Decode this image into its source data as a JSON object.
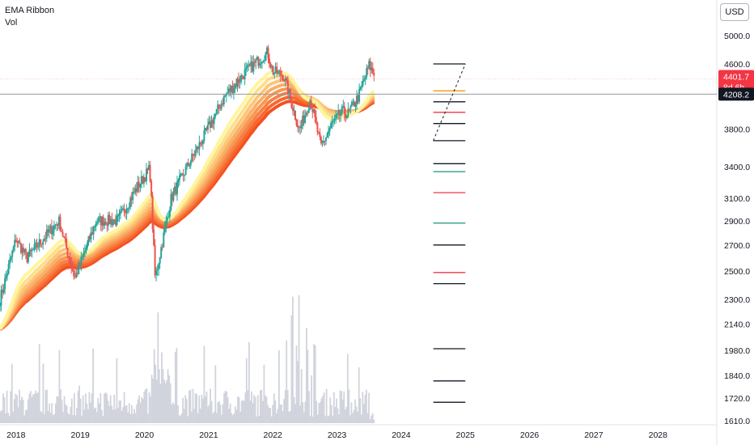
{
  "legend": {
    "line1": "EMA Ribbon",
    "line2": "Vol"
  },
  "currency_button": "USD",
  "price_tag": {
    "value": "4401.7",
    "countdown": "8d 6h",
    "color": "#f23645"
  },
  "crosshair_tag": {
    "value": "4208.2",
    "color": "#131722"
  },
  "colors": {
    "up": "#26a69a",
    "down": "#ef5350",
    "volume": "#d1d4dc",
    "ribbon_light": "#fff59d",
    "ribbon_dark": "#f4511e",
    "level_black": "#131722",
    "level_orange": "#ff9800",
    "level_red": "#f23645",
    "level_green": "#2e9e86"
  },
  "chart_data": {
    "type": "candlestick",
    "x_start": "2017-10",
    "x_end": "2028-12",
    "y_scale": "log",
    "y_ticks": [
      "5000.0",
      "4600.0",
      "4200.0",
      "3800.0",
      "3400.0",
      "3100.0",
      "2900.0",
      "2700.0",
      "2500.0",
      "2300.0",
      "2140.0",
      "1980.0",
      "1840.0",
      "1720.0",
      "1610.0"
    ],
    "x_ticks": [
      "2018",
      "2019",
      "2020",
      "2021",
      "2022",
      "2023",
      "2024",
      "2025",
      "2026",
      "2027",
      "2028"
    ],
    "last_price": 4401.7,
    "crosshair_price": 4208.2,
    "anchor_points": [
      [
        "2017-10",
        2300
      ],
      [
        "2018-01",
        2750
      ],
      [
        "2018-03",
        2600
      ],
      [
        "2018-09",
        2900
      ],
      [
        "2018-12",
        2450
      ],
      [
        "2019-04",
        2900
      ],
      [
        "2019-08",
        2900
      ],
      [
        "2019-12",
        3230
      ],
      [
        "2020-02",
        3380
      ],
      [
        "2020-03",
        2450
      ],
      [
        "2020-06",
        3100
      ],
      [
        "2020-09",
        3400
      ],
      [
        "2020-12",
        3700
      ],
      [
        "2021-04",
        4180
      ],
      [
        "2021-08",
        4500
      ],
      [
        "2021-12",
        4760
      ],
      [
        "2022-01",
        4500
      ],
      [
        "2022-03",
        4450
      ],
      [
        "2022-06",
        3780
      ],
      [
        "2022-08",
        4150
      ],
      [
        "2022-10",
        3600
      ],
      [
        "2022-12",
        3850
      ],
      [
        "2023-02",
        4000
      ],
      [
        "2023-03",
        3970
      ],
      [
        "2023-05",
        4180
      ],
      [
        "2023-07",
        4580
      ],
      [
        "2023-08",
        4450
      ]
    ],
    "ribbon": {
      "lines": 8,
      "spans_months": [
        8,
        10,
        12,
        14,
        16,
        18,
        20,
        22
      ]
    },
    "volume_bars": 300,
    "drawing": {
      "horizontal_levels": [
        {
          "price": 4600,
          "color": "black"
        },
        {
          "price": 4250,
          "color": "orange"
        },
        {
          "price": 4115,
          "color": "black"
        },
        {
          "price": 3990,
          "color": "red"
        },
        {
          "price": 3860,
          "color": "black"
        },
        {
          "price": 3670,
          "color": "black"
        },
        {
          "price": 3430,
          "color": "black"
        },
        {
          "price": 3350,
          "color": "green"
        },
        {
          "price": 3150,
          "color": "red"
        },
        {
          "price": 2880,
          "color": "green"
        },
        {
          "price": 2700,
          "color": "black"
        },
        {
          "price": 2490,
          "color": "red"
        },
        {
          "price": 2410,
          "color": "black"
        },
        {
          "price": 1990,
          "color": "black"
        },
        {
          "price": 1810,
          "color": "black"
        },
        {
          "price": 1700,
          "color": "black"
        }
      ],
      "dashed_from": [
        "2024-07",
        3670
      ],
      "dashed_to": [
        "2025-01",
        4600
      ]
    }
  }
}
